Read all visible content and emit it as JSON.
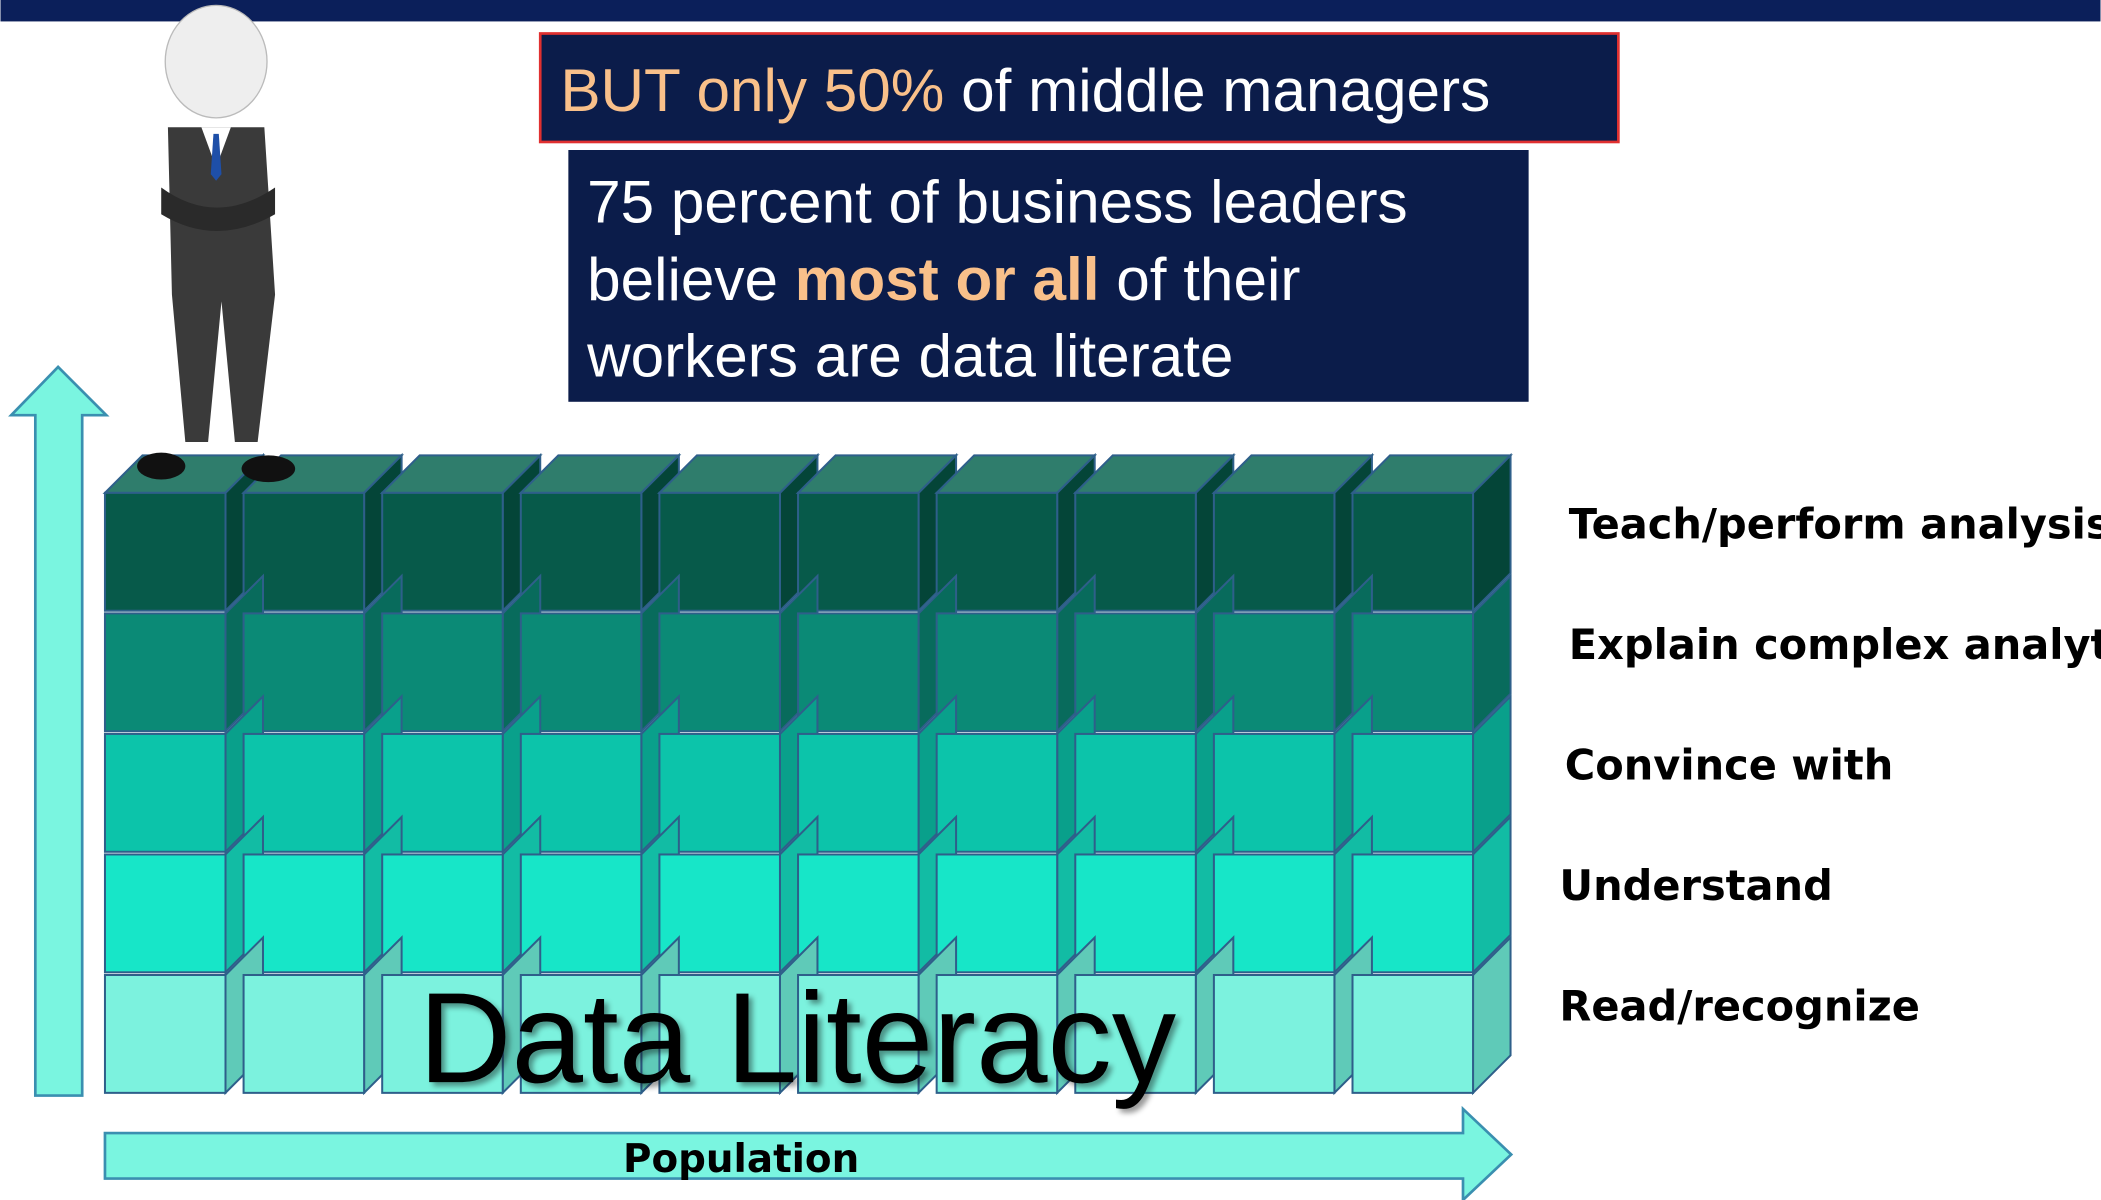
{
  "callout_top": {
    "highlight": "BUT only 50%",
    "rest": "of middle managers"
  },
  "callout_main": {
    "line1": "75 percent of business leaders",
    "line2_start": "believe",
    "line2_emphasis": "most or all",
    "line2_end": "of their",
    "line3": "workers are data literate"
  },
  "levels": [
    "Teach/perform analysis",
    "Explain complex analytics",
    "Convince with",
    "Understand",
    "Read/recognize"
  ],
  "title": "Data Literacy",
  "x_axis_label": "Population"
}
